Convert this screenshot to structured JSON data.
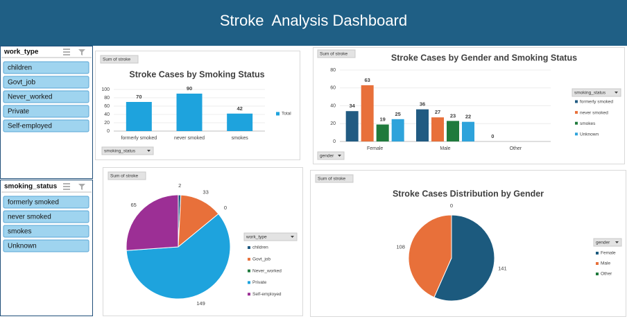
{
  "header": {
    "title": "Stroke  Analysis Dashboard"
  },
  "slicers": [
    {
      "title": "work_type",
      "items": [
        "children",
        "Govt_job",
        "Never_worked",
        "Private",
        "Self-employed"
      ]
    },
    {
      "title": "smoking_status",
      "items": [
        "formerly smoked",
        "never smoked",
        "smokes",
        "Unknown"
      ]
    }
  ],
  "chart_data": [
    {
      "type": "bar",
      "title": "Stroke Cases by Smoking Status",
      "field_button": "Sum of stroke",
      "axis_field": "smoking_status",
      "categories": [
        "formerly smoked",
        "never smoked",
        "smokes"
      ],
      "series": [
        {
          "name": "Total",
          "color": "#1ea3dd",
          "values": [
            70,
            90,
            42
          ]
        }
      ],
      "ylim": [
        0,
        100
      ],
      "yticks": [
        0,
        20,
        40,
        60,
        80,
        100
      ],
      "grid": true
    },
    {
      "type": "bar",
      "title": "Stroke Cases by Gender and Smoking Status",
      "field_button": "Sum of stroke",
      "axis_field": "gender",
      "legend_title": "smoking_status",
      "categories": [
        "Female",
        "Male",
        "Other"
      ],
      "series": [
        {
          "name": "formerly smoked",
          "color": "#215b82",
          "values": [
            34,
            36,
            0
          ]
        },
        {
          "name": "never smoked",
          "color": "#e8703a",
          "values": [
            63,
            27,
            null
          ]
        },
        {
          "name": "smokes",
          "color": "#1f7a3c",
          "values": [
            19,
            23,
            null
          ]
        },
        {
          "name": "Unknown",
          "color": "#2ea3db",
          "values": [
            25,
            22,
            null
          ]
        }
      ],
      "ylim": [
        0,
        80
      ],
      "yticks": [
        0,
        20,
        40,
        60,
        80
      ],
      "grid": true
    },
    {
      "type": "pie",
      "field_button": "Sum of stroke",
      "legend_title": "work_type",
      "categories": [
        "children",
        "Govt_job",
        "Never_worked",
        "Private",
        "Self-employed"
      ],
      "values": [
        2,
        33,
        0,
        149,
        65
      ],
      "colors": [
        "#215b82",
        "#e8703a",
        "#1f7a3c",
        "#1ea3dd",
        "#9c2f95"
      ]
    },
    {
      "type": "pie",
      "title": "Stroke Cases Distribution by Gender",
      "field_button": "Sum of stroke",
      "legend_title": "gender",
      "categories": [
        "Female",
        "Male",
        "Other"
      ],
      "values": [
        141,
        108,
        0
      ],
      "colors": [
        "#1c5a7e",
        "#e8703a",
        "#1f7a3c"
      ]
    }
  ]
}
